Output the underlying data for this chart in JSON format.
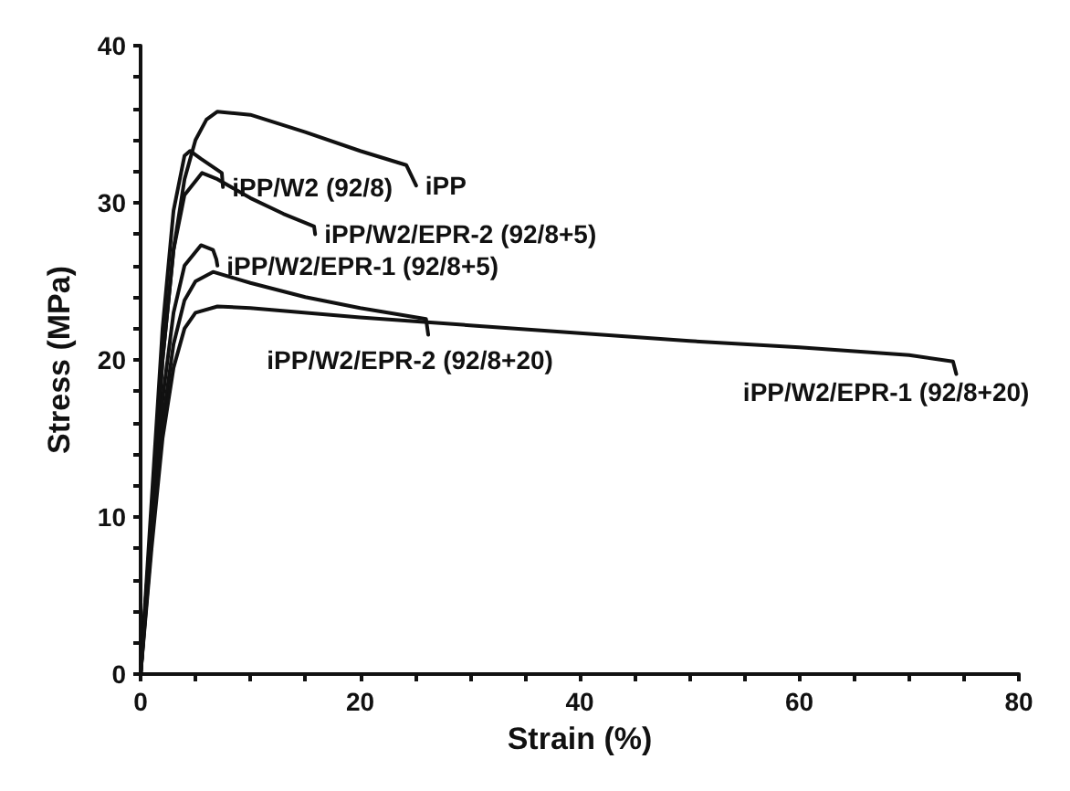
{
  "chart_data": {
    "type": "line",
    "xlabel": "Strain (%)",
    "ylabel": "Stress (MPa)",
    "xlim": [
      0,
      80
    ],
    "ylim": [
      0,
      40
    ],
    "xticks": [
      0,
      {
        "value": 5,
        "label": null
      },
      {
        "value": 10,
        "label": null
      },
      {
        "value": 15,
        "label": null
      },
      20,
      {
        "value": 25,
        "label": null
      },
      {
        "value": 30,
        "label": null
      },
      {
        "value": 35,
        "label": null
      },
      40,
      {
        "value": 45,
        "label": null
      },
      {
        "value": 50,
        "label": null
      },
      {
        "value": 55,
        "label": null
      },
      60,
      {
        "value": 65,
        "label": null
      },
      {
        "value": 70,
        "label": null
      },
      {
        "value": 75,
        "label": null
      },
      80
    ],
    "yticks": [
      0,
      {
        "value": 2,
        "label": null
      },
      {
        "value": 4,
        "label": null
      },
      {
        "value": 6,
        "label": null
      },
      {
        "value": 8,
        "label": null
      },
      10,
      {
        "value": 12,
        "label": null
      },
      {
        "value": 14,
        "label": null
      },
      {
        "value": 16,
        "label": null
      },
      {
        "value": 18,
        "label": null
      },
      20,
      {
        "value": 22,
        "label": null
      },
      {
        "value": 24,
        "label": null
      },
      {
        "value": 26,
        "label": null
      },
      {
        "value": 28,
        "label": null
      },
      30,
      {
        "value": 32,
        "label": null
      },
      {
        "value": 34,
        "label": null
      },
      {
        "value": 36,
        "label": null
      },
      {
        "value": 38,
        "label": null
      },
      40
    ],
    "grid": false,
    "legend": false,
    "marker": "none",
    "line_style": "solid",
    "series": [
      {
        "name": "iPP",
        "color": "#111111",
        "x": [
          0,
          1,
          2,
          3,
          4,
          5,
          6,
          7,
          10,
          15,
          20,
          24.2,
          25.1
        ],
        "values": [
          0,
          10,
          20,
          27,
          31.5,
          34,
          35.3,
          35.8,
          35.6,
          34.5,
          33.3,
          32.4,
          31.1
        ]
      },
      {
        "name": "iPP/W2 (92/8)",
        "color": "#111111",
        "x": [
          0,
          1,
          2,
          3,
          4,
          4.5,
          5.5,
          7.4,
          7.5
        ],
        "values": [
          0,
          11,
          22,
          29.5,
          33,
          33.3,
          32.8,
          31.9,
          31
        ]
      },
      {
        "name": "iPP/W2/EPR-2 (92/8+5)",
        "color": "#111111",
        "x": [
          0,
          1,
          2,
          3,
          4,
          5.6,
          7,
          10,
          13,
          15.8,
          15.9
        ],
        "values": [
          0,
          10,
          20,
          27,
          30.5,
          31.9,
          31.5,
          30.3,
          29.3,
          28.5,
          28
        ]
      },
      {
        "name": "iPP/W2/EPR-1 (92/8+5)",
        "color": "#111111",
        "x": [
          0,
          1,
          2,
          3,
          4,
          5.5,
          6.6,
          6.9,
          7
        ],
        "values": [
          0,
          9,
          17.5,
          23,
          26,
          27.3,
          27,
          26.4,
          26
        ]
      },
      {
        "name": "iPP/W2/EPR-2 (92/8+20)",
        "color": "#111111",
        "x": [
          0,
          1,
          2,
          3,
          4,
          5,
          6.6,
          10,
          15,
          20,
          26,
          26.2
        ],
        "values": [
          0,
          8.5,
          16,
          21,
          23.8,
          25,
          25.6,
          24.9,
          24,
          23.3,
          22.6,
          21.6
        ]
      },
      {
        "name": "iPP/W2/EPR-1 (92/8+20)",
        "color": "#111111",
        "x": [
          0,
          1,
          2,
          3,
          4,
          5,
          7,
          10,
          20,
          30,
          40,
          50,
          60,
          70,
          74,
          74.3
        ],
        "values": [
          0,
          8,
          15,
          19.5,
          22,
          23,
          23.4,
          23.3,
          22.7,
          22.2,
          21.7,
          21.2,
          20.8,
          20.3,
          19.9,
          19.1
        ]
      }
    ]
  }
}
